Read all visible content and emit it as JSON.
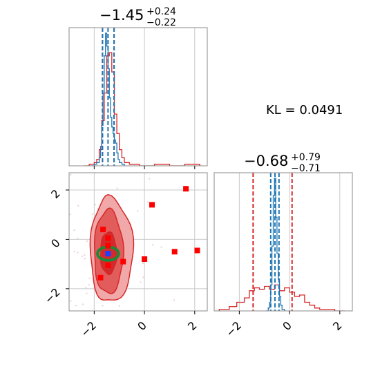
{
  "chart_data": [
    {
      "type": "histogram",
      "panel": "top-left",
      "title": {
        "main": "−1.45",
        "sup": "+0.24",
        "sub": "−0.22"
      },
      "xlim": [
        -3,
        2.5
      ],
      "grid": true,
      "blue_dashed_lines": [
        -1.67,
        -1.45,
        -1.21
      ],
      "red_dashed_lines": [
        -1.67,
        -1.21
      ],
      "blue_hist": {
        "x": [
          -2.2,
          -2.0,
          -1.9,
          -1.8,
          -1.75,
          -1.7,
          -1.65,
          -1.6,
          -1.55,
          -1.5,
          -1.45,
          -1.4,
          -1.35,
          -1.3,
          -1.25,
          -1.2,
          -1.15,
          -1.1,
          -1.05,
          -1.0,
          -0.9,
          -0.8
        ],
        "y": [
          0.0,
          0.01,
          0.02,
          0.05,
          0.12,
          0.25,
          0.45,
          0.68,
          0.82,
          0.74,
          0.6,
          0.42,
          0.3,
          0.24,
          0.2,
          0.16,
          0.14,
          0.08,
          0.04,
          0.02,
          0.01,
          0.0
        ]
      },
      "red_hist": {
        "x": [
          -2.4,
          -2.2,
          -2.0,
          -1.9,
          -1.8,
          -1.7,
          -1.6,
          -1.5,
          -1.4,
          -1.3,
          -1.2,
          -1.1,
          -1.0,
          -0.9,
          -0.8,
          -0.6,
          -0.2,
          0.4,
          1.0,
          1.6,
          2.2
        ],
        "y": [
          0.0,
          0.01,
          0.02,
          0.04,
          0.1,
          0.28,
          0.45,
          0.68,
          0.7,
          0.58,
          0.32,
          0.2,
          0.1,
          0.05,
          0.02,
          0.01,
          0.0,
          0.01,
          0.0,
          0.01,
          0.0
        ]
      }
    },
    {
      "type": "contour-scatter",
      "panel": "bottom-left",
      "xlim": [
        -3,
        2.5
      ],
      "ylim": [
        -2.9,
        2.7
      ],
      "xticks": [
        -2,
        0,
        2
      ],
      "yticks": [
        -2,
        0,
        2
      ],
      "xticklabels": [
        "−2",
        "0",
        "2"
      ],
      "yticklabels": [
        "−2",
        "0",
        "2"
      ],
      "grid": true,
      "red_contour_levels": [
        {
          "center": [
            -1.45,
            -0.55
          ],
          "rx": [
            0.7,
            1.0
          ],
          "ry": [
            2.25,
            2.0
          ],
          "fill": "#f0a8a8"
        },
        {
          "center": [
            -1.45,
            -0.6
          ],
          "rx": [
            0.55,
            0.6
          ],
          "ry": [
            1.8,
            1.6
          ],
          "fill": "#e25c5c"
        },
        {
          "center": [
            -1.45,
            -0.6
          ],
          "rx": [
            0.3,
            0.35
          ],
          "ry": [
            0.9,
            0.8
          ],
          "fill": "#d32b2b"
        }
      ],
      "green_ellipse": {
        "center": [
          -1.45,
          -0.58
        ],
        "rx": 0.42,
        "ry": 0.27
      },
      "blue_point": [
        -1.45,
        -0.58
      ],
      "red_points": [
        [
          1.65,
          2.05
        ],
        [
          0.3,
          1.4
        ],
        [
          -1.65,
          0.4
        ],
        [
          -1.45,
          0.05
        ],
        [
          -1.45,
          -0.25
        ],
        [
          -0.85,
          -0.9
        ],
        [
          0.0,
          -0.8
        ],
        [
          1.2,
          -0.5
        ],
        [
          2.1,
          -0.45
        ],
        [
          -1.75,
          -1.55
        ],
        [
          -1.45,
          -1.05
        ]
      ]
    },
    {
      "type": "histogram",
      "panel": "bottom-right",
      "title": {
        "main": "−0.68",
        "sup": "+0.79",
        "sub": "−0.71"
      },
      "xlim": [
        -3,
        2.5
      ],
      "xticks": [
        -2,
        0,
        2
      ],
      "xticklabels": [
        "−2",
        "0",
        "2"
      ],
      "grid": true,
      "blue_dashed_lines": [
        -0.75,
        -0.58,
        -0.42
      ],
      "red_dashed_lines": [
        -1.45,
        0.1
      ],
      "blue_hist": {
        "x": [
          -0.95,
          -0.85,
          -0.8,
          -0.75,
          -0.7,
          -0.65,
          -0.6,
          -0.55,
          -0.5,
          -0.45,
          -0.4,
          -0.35,
          -0.3,
          -0.2
        ],
        "y": [
          0.0,
          0.02,
          0.06,
          0.18,
          0.45,
          0.8,
          0.92,
          0.65,
          0.4,
          0.22,
          0.1,
          0.04,
          0.01,
          0.0
        ]
      },
      "red_hist": {
        "x": [
          -2.8,
          -2.4,
          -2.1,
          -1.8,
          -1.6,
          -1.4,
          -1.2,
          -1.0,
          -0.8,
          -0.6,
          -0.4,
          -0.2,
          0.0,
          0.2,
          0.4,
          0.6,
          0.8,
          1.0,
          1.2,
          1.5,
          1.8,
          2.2
        ],
        "y": [
          0.01,
          0.03,
          0.06,
          0.09,
          0.14,
          0.16,
          0.15,
          0.17,
          0.15,
          0.18,
          0.14,
          0.16,
          0.13,
          0.1,
          0.11,
          0.06,
          0.04,
          0.02,
          0.01,
          0.01,
          0.0,
          0.0
        ]
      }
    }
  ],
  "annotation": {
    "kl_label": "KL = 0.0491"
  },
  "colors": {
    "red": "#d62728",
    "blue": "#1f77b4",
    "green": "#1a8a3a",
    "grid": "#c8c8c8",
    "axis": "#888888"
  }
}
